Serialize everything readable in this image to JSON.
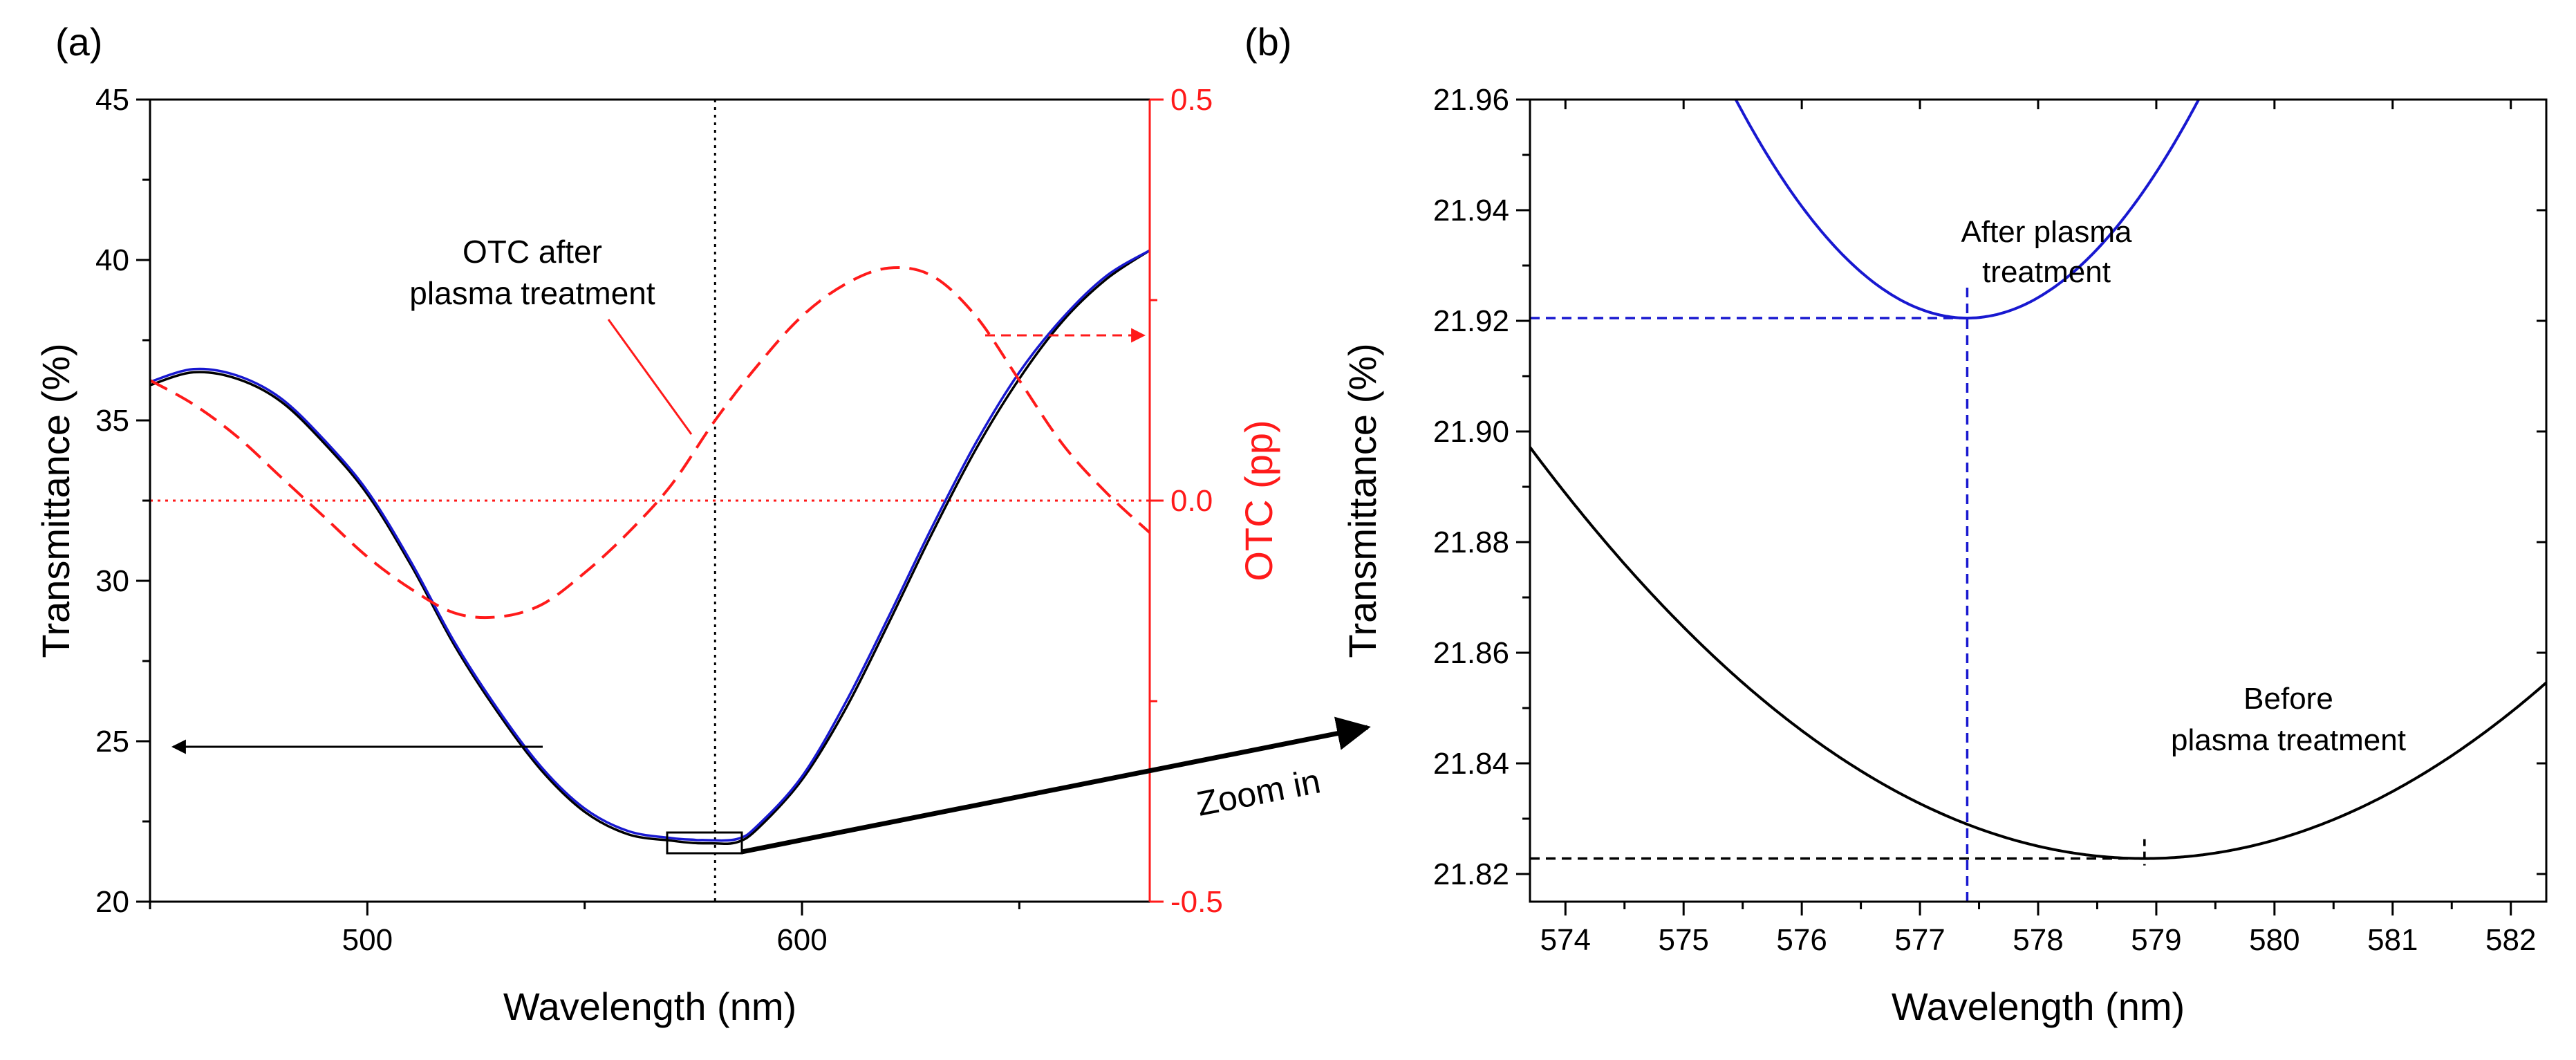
{
  "panel_a": {
    "label": "(a)",
    "chart_data": {
      "type": "line",
      "xlabel": "Wavelength (nm)",
      "ylabel": "Transmittance (%)",
      "y2label": "OTC (pp)",
      "xlim": [
        450,
        680
      ],
      "ylim": [
        20,
        45
      ],
      "y2lim": [
        -0.5,
        0.5
      ],
      "x_ticks": [
        500,
        600
      ],
      "y_ticks": [
        20,
        25,
        30,
        35,
        40,
        45
      ],
      "y2_ticks": [
        -0.5,
        0.0,
        0.5
      ],
      "y2_tick_labels": [
        "-0.5",
        "0.0",
        "0.5"
      ],
      "series": [
        {
          "name": "Transmittance before plasma treatment",
          "axis": "left",
          "color": "#000000",
          "style": "solid",
          "x": [
            450,
            460,
            470,
            480,
            490,
            500,
            510,
            520,
            530,
            540,
            550,
            560,
            570,
            575,
            579,
            585,
            590,
            600,
            610,
            620,
            630,
            640,
            650,
            660,
            670,
            680
          ],
          "y": [
            36.1,
            36.5,
            36.3,
            35.6,
            34.3,
            32.7,
            30.5,
            28.0,
            25.9,
            24.1,
            22.8,
            22.1,
            21.9,
            21.83,
            21.82,
            21.85,
            22.3,
            23.8,
            26.0,
            28.7,
            31.5,
            34.1,
            36.3,
            38.1,
            39.4,
            40.3
          ]
        },
        {
          "name": "Transmittance after plasma treatment",
          "axis": "left",
          "color": "#1818d0",
          "style": "solid",
          "x": [
            450,
            460,
            470,
            480,
            490,
            500,
            510,
            520,
            530,
            540,
            550,
            560,
            570,
            575,
            577,
            585,
            590,
            600,
            610,
            620,
            630,
            640,
            650,
            660,
            670,
            680
          ],
          "y": [
            36.2,
            36.6,
            36.4,
            35.7,
            34.4,
            32.8,
            30.6,
            28.1,
            26.0,
            24.2,
            22.9,
            22.2,
            21.98,
            21.93,
            21.92,
            21.95,
            22.4,
            23.9,
            26.2,
            28.9,
            31.7,
            34.3,
            36.5,
            38.2,
            39.5,
            40.3
          ]
        },
        {
          "name": "OTC after plasma treatment",
          "axis": "right",
          "color": "#ff1a1a",
          "style": "dashed",
          "x": [
            450,
            460,
            470,
            480,
            490,
            500,
            510,
            520,
            530,
            540,
            550,
            560,
            570,
            580,
            590,
            600,
            610,
            620,
            630,
            640,
            650,
            660,
            670,
            680
          ],
          "y": [
            0.15,
            0.12,
            0.08,
            0.03,
            -0.02,
            -0.07,
            -0.11,
            -0.14,
            -0.145,
            -0.13,
            -0.09,
            -0.04,
            0.02,
            0.1,
            0.17,
            0.23,
            0.27,
            0.29,
            0.28,
            0.23,
            0.15,
            0.07,
            0.01,
            -0.04
          ]
        }
      ],
      "reference_lines": [
        {
          "type": "vertical",
          "x": 580,
          "style": "dotted",
          "color": "#000000"
        },
        {
          "type": "horizontal",
          "axis": "right",
          "y": 0.0,
          "style": "dotted",
          "color": "#ff1a1a"
        }
      ],
      "annotations": {
        "otc_label_line1": "OTC after",
        "otc_label_line2": "plasma treatment",
        "zoom_label": "Zoom in"
      }
    }
  },
  "panel_b": {
    "label": "(b)",
    "chart_data": {
      "type": "line",
      "xlabel": "Wavelength (nm)",
      "ylabel": "Transmittance (%)",
      "xlim": [
        573.7,
        582.3
      ],
      "ylim": [
        21.815,
        21.96
      ],
      "x_ticks": [
        574,
        575,
        576,
        577,
        578,
        579,
        580,
        581,
        582
      ],
      "y_ticks": [
        21.82,
        21.84,
        21.86,
        21.88,
        21.9,
        21.92,
        21.94,
        21.96
      ],
      "y_tick_labels": [
        "21.82",
        "21.84",
        "21.86",
        "21.88",
        "21.90",
        "21.92",
        "21.94",
        "21.96"
      ],
      "series": [
        {
          "name": "After plasma treatment",
          "color": "#1818d0",
          "style": "solid",
          "vertex_x": 577.4,
          "vertex_y": 21.9205,
          "curvature": 0.0103
        },
        {
          "name": "Before plasma treatment",
          "color": "#000000",
          "style": "solid",
          "vertex_x": 578.9,
          "vertex_y": 21.8228,
          "curvature": 0.00275
        }
      ],
      "markers": [
        {
          "series": "After plasma treatment",
          "x": 577.4,
          "y": 21.9205,
          "color": "#1818d0"
        },
        {
          "series": "Before plasma treatment",
          "x": 578.9,
          "y": 21.8228,
          "color": "#000000"
        }
      ],
      "annotations": {
        "after_line1": "After plasma",
        "after_line2": "treatment",
        "before_line1": "Before",
        "before_line2": "plasma treatment"
      }
    }
  }
}
